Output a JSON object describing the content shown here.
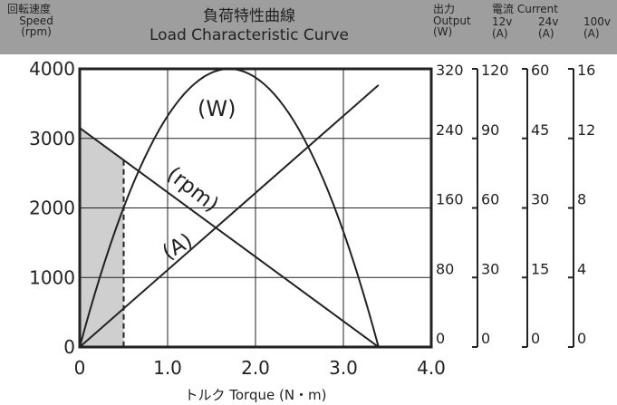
{
  "header": {
    "speed_label_jp": "回転速度",
    "speed_label_en": "Speed",
    "speed_unit": "(rpm)",
    "title_jp": "負荷特性曲線",
    "title_en": "Load Characteristic Curve",
    "output_label_jp": "出力",
    "output_label_en": "Output",
    "output_unit": "(W)",
    "current_label_jp": "電流",
    "current_label_en": "Current",
    "col_12v": "12v",
    "col_24v": "24v",
    "col_100v": "100v",
    "unit_a": "(A)"
  },
  "chart_data": {
    "type": "line",
    "title": "Load Characteristic Curve",
    "xlabel": "トルク Torque (N・m)",
    "ylabel": "Speed (rpm)",
    "xlim": [
      0,
      4.0
    ],
    "ylim": [
      0,
      4000
    ],
    "x_ticks": [
      "0",
      "1.0",
      "2.0",
      "3.0",
      "4.0"
    ],
    "y_ticks": [
      "0",
      "1000",
      "2000",
      "3000",
      "4000"
    ],
    "grid": true,
    "series": [
      {
        "name": "(rpm)",
        "axis": "Speed (rpm)",
        "x": [
          0,
          3.4
        ],
        "y": [
          3150,
          0
        ]
      },
      {
        "name": "(W)",
        "axis": "Output (W)",
        "x": [
          0,
          0.425,
          0.85,
          1.275,
          1.7,
          2.125,
          2.55,
          2.975,
          3.4
        ],
        "y": [
          0,
          140,
          240,
          300,
          320,
          300,
          240,
          140,
          0
        ]
      },
      {
        "name": "(A)",
        "axis": "Current 12v (A)",
        "x": [
          0,
          3.4
        ],
        "y": [
          0,
          113
        ]
      }
    ],
    "shaded_region": {
      "x": [
        0,
        0.5
      ]
    },
    "right_axes": [
      {
        "name": "Output (W)",
        "ticks": [
          "0",
          "80",
          "160",
          "240",
          "320"
        ]
      },
      {
        "name": "Current 12v (A)",
        "ticks": [
          "0",
          "30",
          "60",
          "90",
          "120"
        ]
      },
      {
        "name": "Current 24v (A)",
        "ticks": [
          "0",
          "15",
          "30",
          "45",
          "60"
        ]
      },
      {
        "name": "Current 100v (A)",
        "ticks": [
          "0",
          "4",
          "8",
          "12",
          "16"
        ]
      }
    ]
  }
}
